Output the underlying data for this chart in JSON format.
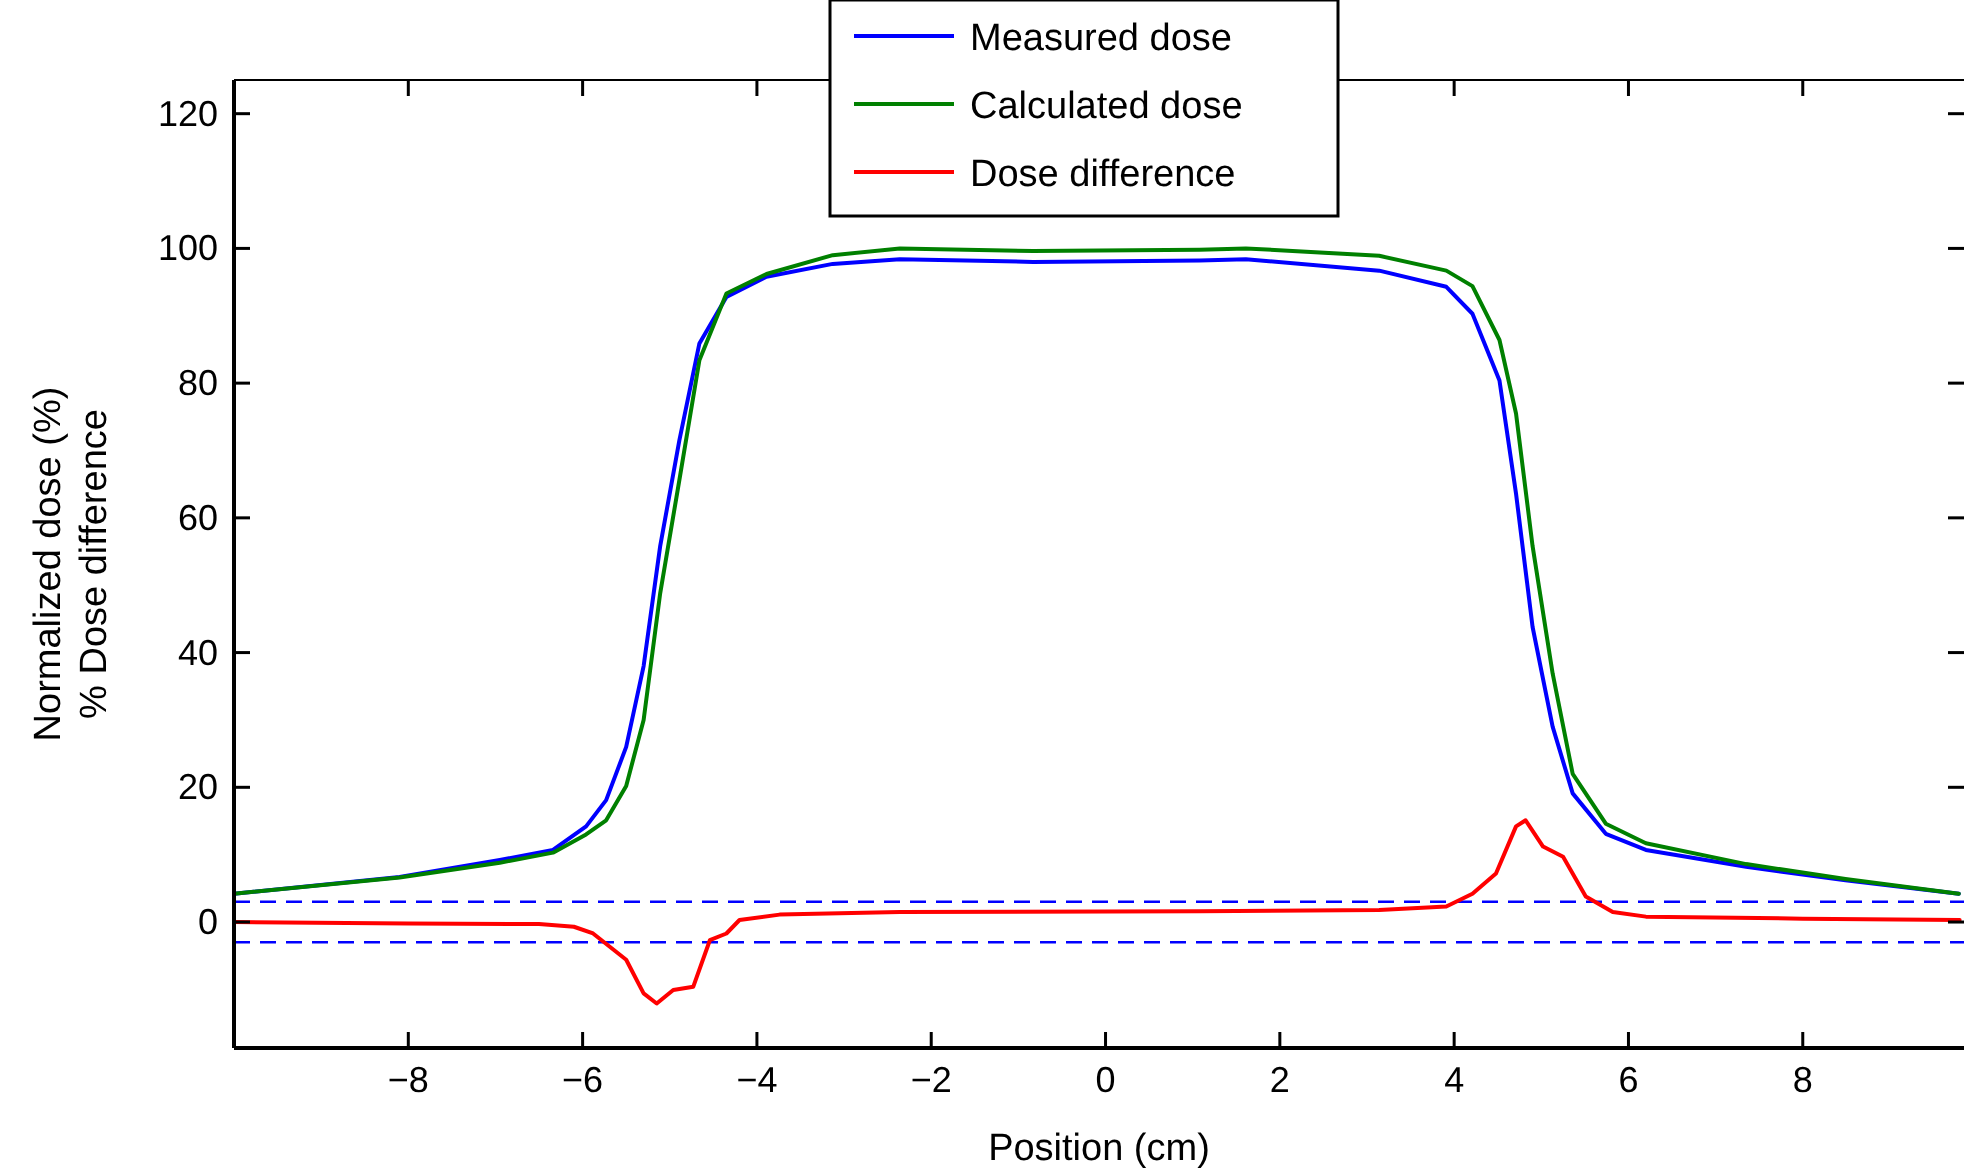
{
  "chart_data": {
    "type": "line",
    "xlabel": "Position (cm)",
    "ylabel": "Normalized dose (%)\n% Dose difference",
    "xlim": [
      -10,
      9.85
    ],
    "ylim": [
      -18.7,
      125
    ],
    "xticks": [
      -8,
      -6,
      -4,
      -2,
      0,
      2,
      4,
      6,
      8
    ],
    "yticks": [
      0,
      20,
      40,
      60,
      80,
      100,
      120
    ],
    "legend": "top",
    "grid": false,
    "ref_lines": [
      {
        "axis": "y",
        "value": 3,
        "color": "#0000ff",
        "line_style": "dashed"
      },
      {
        "axis": "y",
        "value": -3,
        "color": "#0000ff",
        "line_style": "dashed"
      }
    ],
    "series": [
      {
        "name": "Measured dose",
        "color": "#0000ff",
        "x": [
          -10,
          -8.1,
          -6.95,
          -6.34,
          -5.96,
          -5.73,
          -5.5,
          -5.3,
          -5.11,
          -4.89,
          -4.66,
          -4.35,
          -3.89,
          -3.13,
          -2.36,
          -0.83,
          1.08,
          1.61,
          3.14,
          3.91,
          4.21,
          4.52,
          4.71,
          4.9,
          5.13,
          5.36,
          5.74,
          6.2,
          7.35,
          8.49,
          9.79
        ],
        "values": [
          4.2,
          6.7,
          9.2,
          10.7,
          14.2,
          18.1,
          26,
          38,
          55.8,
          71.5,
          85.9,
          92.8,
          95.8,
          97.7,
          98.4,
          98,
          98.2,
          98.4,
          96.7,
          94.3,
          90.3,
          80.4,
          63.6,
          43.8,
          29,
          19.1,
          13.1,
          10.7,
          8.2,
          6.2,
          4.2
        ]
      },
      {
        "name": "Calculated dose",
        "color": "#008000",
        "x": [
          -10,
          -8.1,
          -6.95,
          -6.34,
          -5.96,
          -5.73,
          -5.5,
          -5.3,
          -5.11,
          -4.89,
          -4.66,
          -4.35,
          -3.89,
          -3.13,
          -2.36,
          -0.83,
          1.08,
          1.61,
          3.14,
          3.91,
          4.21,
          4.52,
          4.71,
          4.9,
          5.13,
          5.36,
          5.74,
          6.2,
          7.35,
          8.49,
          9.79
        ],
        "values": [
          4.2,
          6.6,
          8.8,
          10.3,
          13,
          15.1,
          20.2,
          30,
          48.8,
          65.6,
          83.4,
          93.3,
          96.2,
          99,
          100,
          99.6,
          99.8,
          100,
          98.9,
          96.7,
          94.4,
          86.4,
          75.5,
          55.8,
          36.9,
          22,
          14.6,
          11.7,
          8.6,
          6.4,
          4.2
        ]
      },
      {
        "name": "Dose difference",
        "color": "#ff0000",
        "x": [
          -10,
          -8,
          -6.5,
          -6.1,
          -5.88,
          -5.5,
          -5.3,
          -5.15,
          -4.96,
          -4.73,
          -4.54,
          -4.35,
          -4.2,
          -3.74,
          -2.36,
          1.08,
          3.14,
          3.91,
          4.21,
          4.48,
          4.71,
          4.82,
          5.02,
          5.25,
          5.51,
          5.82,
          6.2,
          8,
          9.8
        ],
        "values": [
          0,
          -0.2,
          -0.3,
          -0.7,
          -1.7,
          -5.6,
          -10.6,
          -12.1,
          -10.1,
          -9.6,
          -2.7,
          -1.7,
          0.3,
          1.1,
          1.5,
          1.6,
          1.8,
          2.3,
          4.2,
          7.2,
          14.2,
          15.1,
          11.2,
          9.7,
          3.8,
          1.5,
          0.8,
          0.5,
          0.3
        ]
      }
    ]
  }
}
